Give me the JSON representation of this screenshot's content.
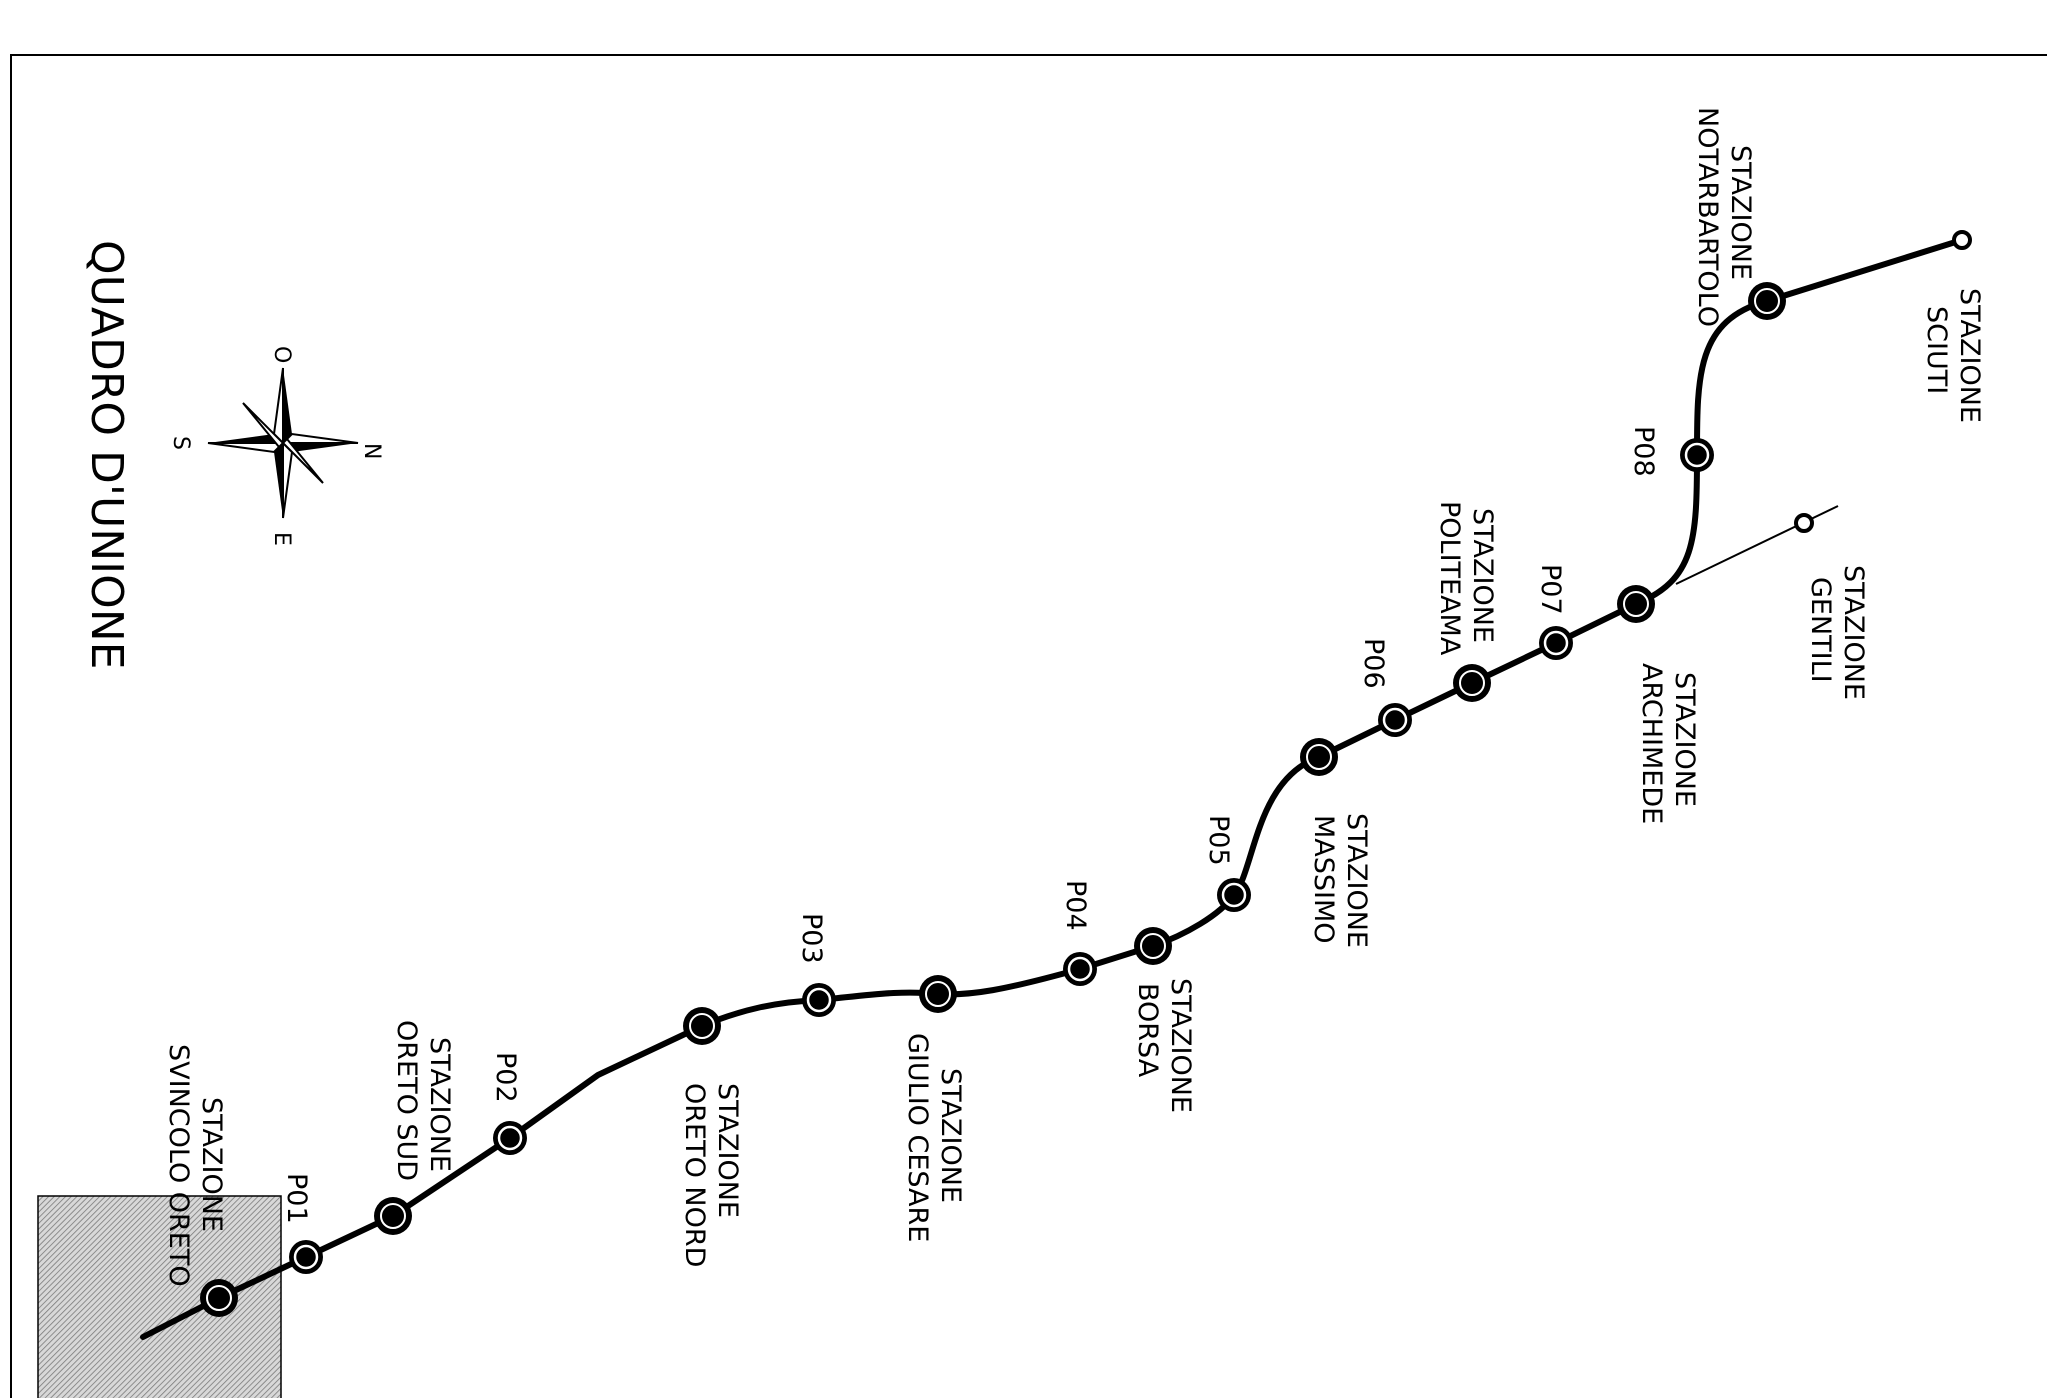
{
  "map": {
    "title": "QUADRO D'UNIONE",
    "compass": {
      "n": "N",
      "s": "S",
      "e": "E",
      "o": "O"
    },
    "stations": [
      {
        "id": "svincolo-oreto",
        "lines": [
          "STAZIONE",
          "SVINCOLO ORETO"
        ]
      },
      {
        "id": "oreto-sud",
        "lines": [
          "STAZIONE",
          "ORETO SUD"
        ]
      },
      {
        "id": "oreto-nord",
        "lines": [
          "STAZIONE",
          "ORETO NORD"
        ]
      },
      {
        "id": "giulio-cesare",
        "lines": [
          "STAZIONE",
          "GIULIO CESARE"
        ]
      },
      {
        "id": "borsa",
        "lines": [
          "STAZIONE",
          "BORSA"
        ]
      },
      {
        "id": "massimo",
        "lines": [
          "STAZIONE",
          "MASSIMO"
        ]
      },
      {
        "id": "politeama",
        "lines": [
          "STAZIONE",
          "POLITEAMA"
        ]
      },
      {
        "id": "archimede",
        "lines": [
          "STAZIONE",
          "ARCHIMEDE"
        ]
      },
      {
        "id": "notarbartolo",
        "lines": [
          "STAZIONE",
          "NOTARBARTOLO"
        ]
      },
      {
        "id": "sciuti",
        "lines": [
          "STAZIONE",
          "SCIUTI"
        ]
      },
      {
        "id": "gentili",
        "lines": [
          "STAZIONE",
          "GENTILI"
        ]
      }
    ],
    "shafts": [
      "P01",
      "P02",
      "P03",
      "P04",
      "P05",
      "P06",
      "P07",
      "P08"
    ]
  }
}
